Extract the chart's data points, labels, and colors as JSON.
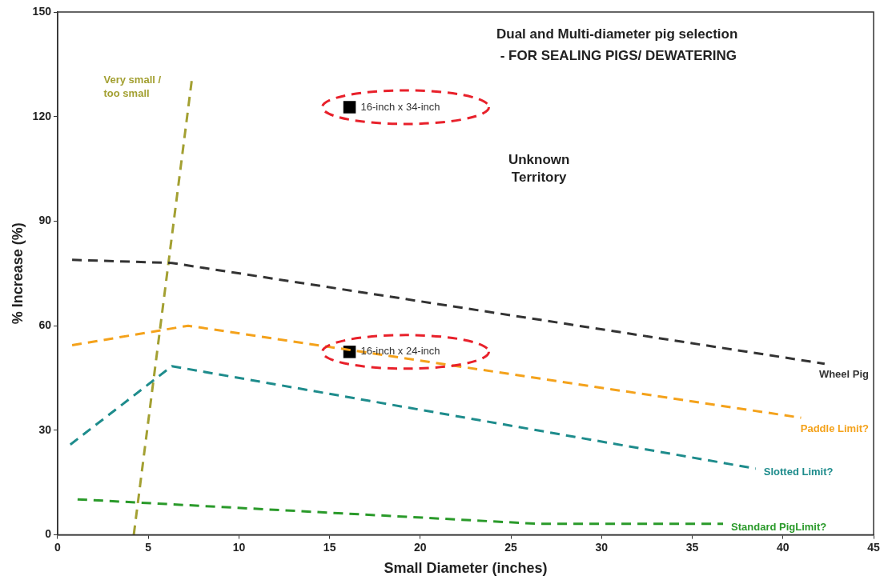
{
  "chart_data": {
    "type": "line",
    "title": "Dual and Multi-diameter pig selection\n - FOR SEALING PIGS/ DEWATERING",
    "xlabel": "Small Diameter (inches)",
    "ylabel": "% Increase (%)",
    "xlim": [
      0,
      45
    ],
    "xticks": [
      0,
      5,
      10,
      15,
      20,
      25,
      30,
      35,
      40,
      45
    ],
    "ylim": [
      0,
      150
    ],
    "yticks": [
      0,
      30,
      60,
      90,
      120,
      150
    ],
    "grid": false,
    "legend": false,
    "line_style": "dashed",
    "marker": "none",
    "annotations": [
      "Unknown\nTerritory"
    ],
    "series": [
      {
        "name": "Wheel Pig",
        "color": "#333333",
        "x": [
          0.8,
          6.3,
          42.3
        ],
        "values": [
          78.9,
          78,
          49.1
        ]
      },
      {
        "name": "Paddle Limit?",
        "color": "#f4a21b",
        "x": [
          0.8,
          7.2,
          41
        ],
        "values": [
          54.4,
          60,
          33.6
        ]
      },
      {
        "name": "Slotted Limit?",
        "color": "#1e8c8c",
        "x": [
          0.7,
          6.3,
          38.5
        ],
        "values": [
          25.9,
          48.4,
          19
        ]
      },
      {
        "name": "Standard PigLimit?",
        "color": "#2a9a2a",
        "x": [
          1.1,
          26.4,
          36.7
        ],
        "values": [
          10.2,
          3.2,
          3.2
        ]
      },
      {
        "name": "Very small / too small",
        "color": "#a3a032",
        "x": [
          4.2,
          7.4
        ],
        "values": [
          0,
          130.5
        ]
      },
      {
        "type": "scatter",
        "marker": "square",
        "color": "#000000",
        "x": [
          16.1,
          16.1
        ],
        "values": [
          122.7,
          52.5
        ],
        "value_labels": [
          "16-inch x 34-inch",
          "16-inch x 24-inch"
        ]
      }
    ]
  }
}
